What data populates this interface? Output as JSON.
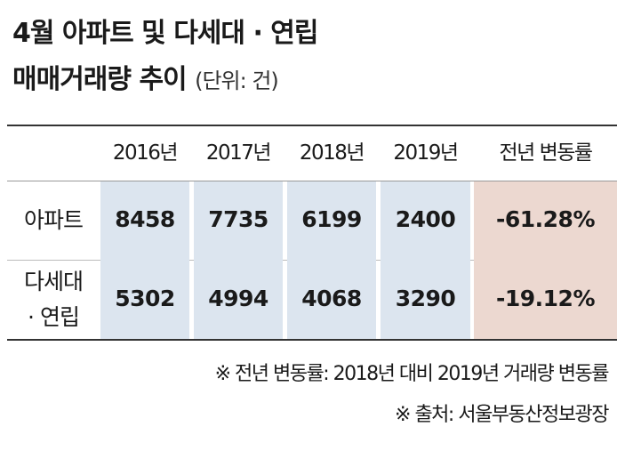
{
  "header": {
    "title_lines": [
      "4월 아파트 및 다세대 · 연립",
      "매매거래량 추이"
    ],
    "unit": "(단위: 건)"
  },
  "table": {
    "columns": [
      "2016년",
      "2017년",
      "2018년",
      "2019년",
      "전년 변동률"
    ],
    "rows": [
      {
        "label": [
          "아파트"
        ],
        "cells": [
          "8458",
          "7735",
          "6199",
          "2400",
          "-61.28%"
        ]
      },
      {
        "label": [
          "다세대",
          "· 연립"
        ],
        "cells": [
          "5302",
          "4994",
          "4068",
          "3290",
          "-19.12%"
        ]
      }
    ]
  },
  "notes": [
    "※ 전년 변동률: 2018년 대비 2019년 거래량 변동률",
    "※ 출처: 서울부동산정보광장"
  ]
}
